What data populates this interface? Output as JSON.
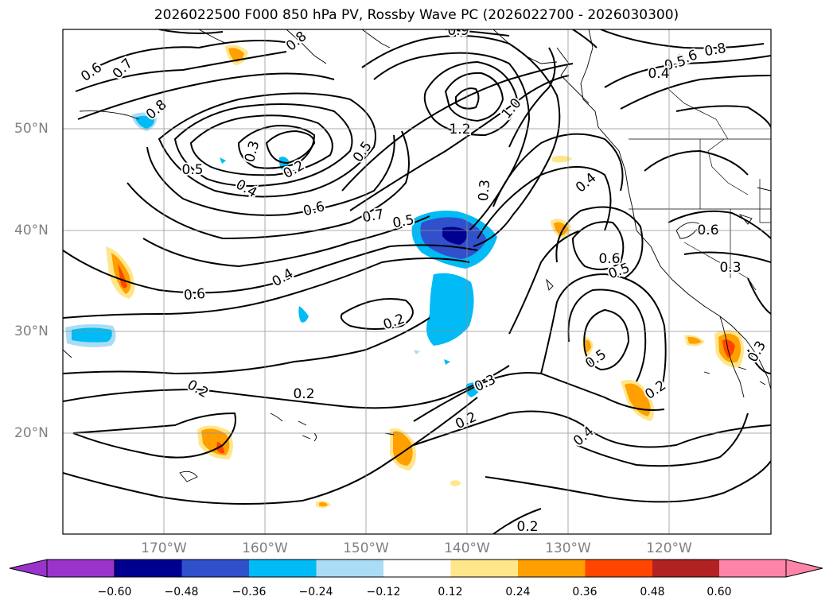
{
  "title": "2026022500 F000 850 hPa PV, Rossby Wave PC (2026022700 - 2026030300)",
  "lat_labels": [
    "50°N",
    "40°N",
    "30°N",
    "20°N"
  ],
  "lon_labels": [
    "170°W",
    "160°W",
    "150°W",
    "140°W",
    "130°W",
    "120°W"
  ],
  "colorbar": {
    "tick_labels": [
      "−0.60",
      "−0.48",
      "−0.36",
      "−0.24",
      "−0.12",
      "0.12",
      "0.24",
      "0.36",
      "0.48",
      "0.60"
    ],
    "colors": [
      "#9933cc",
      "#000090",
      "#3050cc",
      "#00bbf5",
      "#aaddf5",
      "#ffffff",
      "#ffe68a",
      "#ffa000",
      "#ff4500",
      "#b22222",
      "#ff85a8"
    ]
  },
  "contour_labels": [
    "0.6",
    "0.7",
    "0.8",
    "0.9",
    "0.6",
    "0.8",
    "0.5",
    "0.4",
    "0.6",
    "0.8",
    "0.5",
    "0.3",
    "0.2",
    "0.4",
    "0.5",
    "0.6",
    "0.7",
    "0.5",
    "1.2",
    "1.0",
    "0.3",
    "0.4",
    "0.6",
    "0.5",
    "0.6",
    "0.4",
    "0.2",
    "0.5",
    "0.2",
    "0.3",
    "0.2",
    "0.2",
    "0.4",
    "0.2",
    "0.3",
    "0.3",
    "0.2"
  ]
}
